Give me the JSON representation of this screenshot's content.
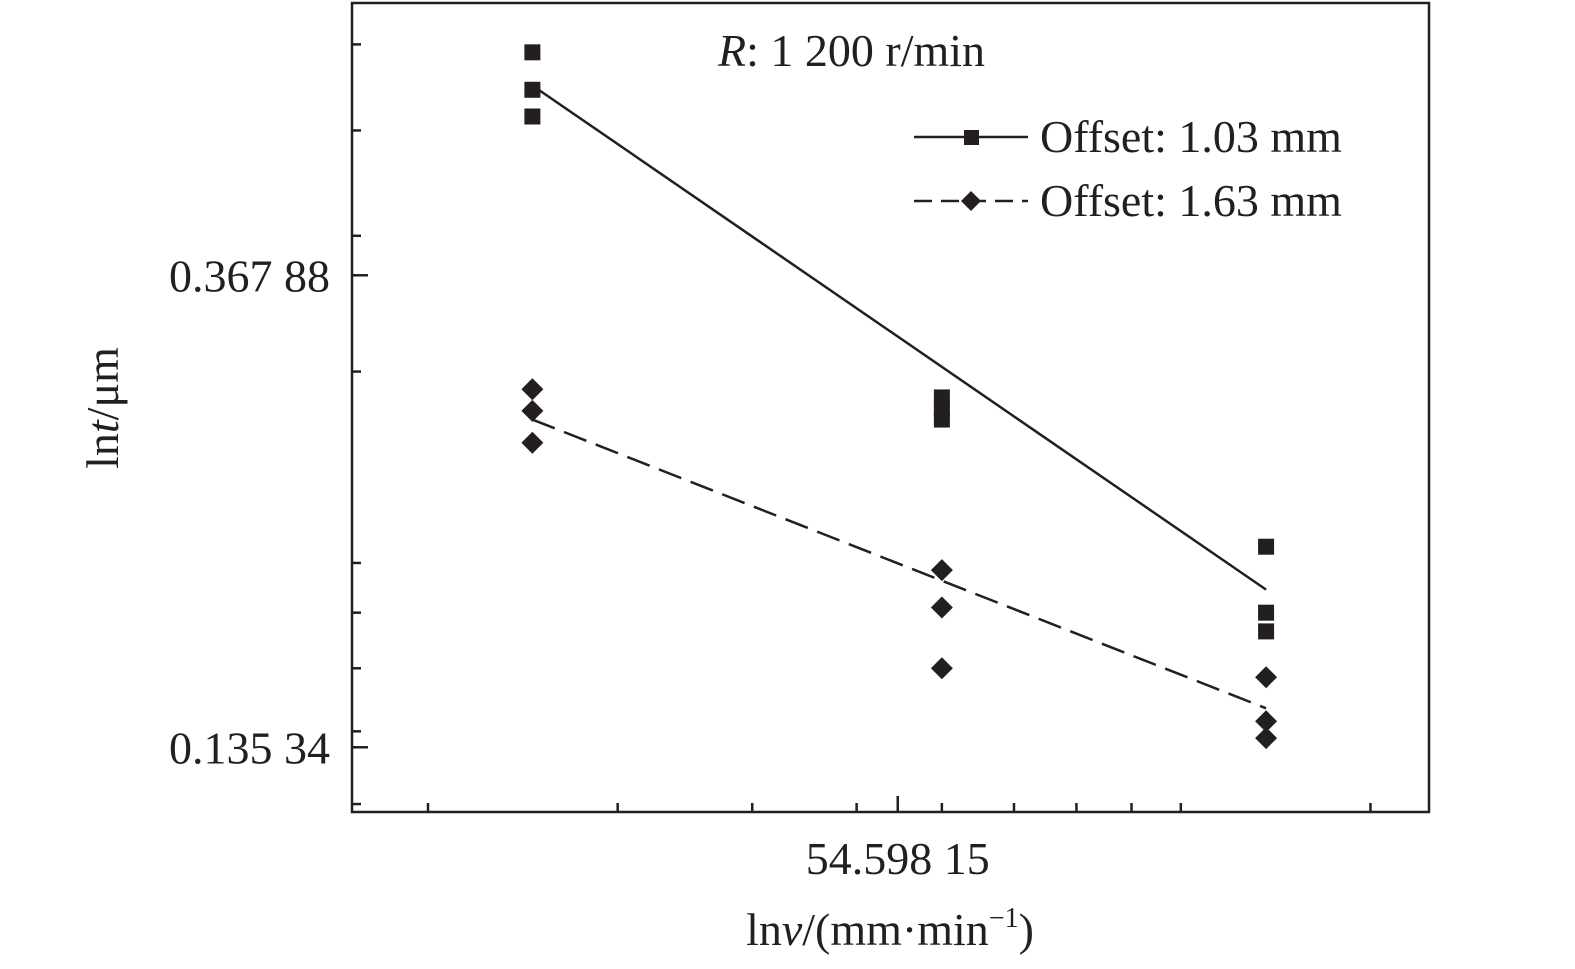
{
  "chart_data": {
    "type": "scatter",
    "title": "",
    "annotation": {
      "var": "R",
      "rest": ": 1 200 r/min"
    },
    "xlabel": {
      "pre": "ln",
      "var": "v",
      "post": "/(mm·min",
      "sup": "−1",
      "tail": ")"
    },
    "ylabel": {
      "pre": "ln",
      "var": "t",
      "post": "/μm"
    },
    "x_scale": "log",
    "y_scale": "log",
    "xlim": [
      17.0,
      170.0
    ],
    "ylim": [
      0.118,
      0.655
    ],
    "x_ticks": [
      {
        "value": 54.59815,
        "label": "54.598 15"
      }
    ],
    "y_ticks": [
      {
        "value": 0.36788,
        "label": "0.367 88"
      },
      {
        "value": 0.13534,
        "label": "0.135 34"
      }
    ],
    "legend_position": "top-right",
    "series": [
      {
        "name": "Offset: 1.03 mm",
        "marker": "square",
        "line": "solid",
        "points": [
          {
            "x": 25,
            "y": 0.59
          },
          {
            "x": 25,
            "y": 0.545
          },
          {
            "x": 25,
            "y": 0.515
          },
          {
            "x": 60,
            "y": 0.284
          },
          {
            "x": 60,
            "y": 0.277
          },
          {
            "x": 60,
            "y": 0.271
          },
          {
            "x": 120,
            "y": 0.207
          },
          {
            "x": 120,
            "y": 0.18
          },
          {
            "x": 120,
            "y": 0.173
          }
        ],
        "fit": [
          {
            "x": 25,
            "y": 0.55
          },
          {
            "x": 120,
            "y": 0.189
          }
        ]
      },
      {
        "name": "Offset: 1.63 mm",
        "marker": "diamond",
        "line": "dashed",
        "points": [
          {
            "x": 25,
            "y": 0.289
          },
          {
            "x": 25,
            "y": 0.276
          },
          {
            "x": 25,
            "y": 0.258
          },
          {
            "x": 60,
            "y": 0.197
          },
          {
            "x": 60,
            "y": 0.182
          },
          {
            "x": 60,
            "y": 0.16
          },
          {
            "x": 120,
            "y": 0.157
          },
          {
            "x": 120,
            "y": 0.143
          },
          {
            "x": 120,
            "y": 0.138
          }
        ],
        "fit": [
          {
            "x": 25,
            "y": 0.271
          },
          {
            "x": 120,
            "y": 0.147
          }
        ]
      }
    ]
  }
}
